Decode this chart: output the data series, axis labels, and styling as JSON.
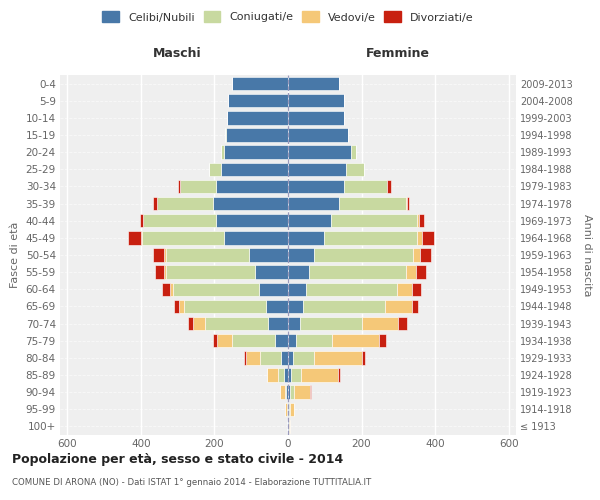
{
  "age_groups": [
    "100+",
    "95-99",
    "90-94",
    "85-89",
    "80-84",
    "75-79",
    "70-74",
    "65-69",
    "60-64",
    "55-59",
    "50-54",
    "45-49",
    "40-44",
    "35-39",
    "30-34",
    "25-29",
    "20-24",
    "15-19",
    "10-14",
    "5-9",
    "0-4"
  ],
  "birth_years": [
    "≤ 1913",
    "1914-1918",
    "1919-1923",
    "1924-1928",
    "1929-1933",
    "1934-1938",
    "1939-1943",
    "1944-1948",
    "1949-1953",
    "1954-1958",
    "1959-1963",
    "1964-1968",
    "1969-1973",
    "1974-1978",
    "1979-1983",
    "1984-1988",
    "1989-1993",
    "1994-1998",
    "1999-2003",
    "2004-2008",
    "2009-2013"
  ],
  "colors": {
    "celibi": "#4878a8",
    "coniugati": "#c8d9a0",
    "vedovi": "#f5c878",
    "divorziati": "#c82010"
  },
  "maschi": {
    "celibi": [
      2,
      3,
      5,
      10,
      18,
      35,
      55,
      60,
      80,
      90,
      105,
      175,
      195,
      205,
      195,
      182,
      175,
      168,
      165,
      162,
      152
    ],
    "coniugati": [
      0,
      0,
      4,
      18,
      58,
      118,
      172,
      222,
      232,
      242,
      228,
      222,
      198,
      152,
      98,
      32,
      8,
      2,
      0,
      0,
      0
    ],
    "vedovi": [
      2,
      4,
      12,
      28,
      38,
      40,
      32,
      14,
      10,
      5,
      5,
      4,
      0,
      0,
      0,
      0,
      0,
      0,
      0,
      0,
      0
    ],
    "divorziati": [
      0,
      0,
      0,
      0,
      5,
      10,
      12,
      15,
      20,
      26,
      28,
      35,
      10,
      10,
      5,
      0,
      0,
      0,
      0,
      0,
      0
    ]
  },
  "femmine": {
    "celibi": [
      2,
      3,
      5,
      8,
      14,
      22,
      33,
      42,
      48,
      58,
      72,
      98,
      118,
      138,
      152,
      158,
      172,
      162,
      152,
      152,
      138
    ],
    "coniugati": [
      0,
      2,
      10,
      28,
      58,
      98,
      168,
      222,
      248,
      262,
      268,
      252,
      232,
      182,
      118,
      48,
      12,
      2,
      0,
      0,
      0
    ],
    "vedovi": [
      3,
      10,
      45,
      100,
      128,
      128,
      98,
      72,
      42,
      28,
      18,
      14,
      5,
      4,
      0,
      0,
      0,
      0,
      0,
      0,
      0
    ],
    "divorziati": [
      0,
      0,
      2,
      5,
      10,
      18,
      24,
      18,
      24,
      28,
      32,
      32,
      14,
      5,
      10,
      0,
      0,
      0,
      0,
      0,
      0
    ]
  },
  "title": "Popolazione per età, sesso e stato civile - 2014",
  "subtitle": "COMUNE DI ARONA (NO) - Dati ISTAT 1° gennaio 2014 - Elaborazione TUTTITALIA.IT",
  "xlabel_left": "Maschi",
  "xlabel_right": "Femmine",
  "ylabel_left": "Fasce di età",
  "ylabel_right": "Anni di nascita",
  "xlim": 620,
  "bg_color": "#efefef",
  "legend_labels": [
    "Celibi/Nubili",
    "Coniugati/e",
    "Vedovi/e",
    "Divorziati/e"
  ]
}
